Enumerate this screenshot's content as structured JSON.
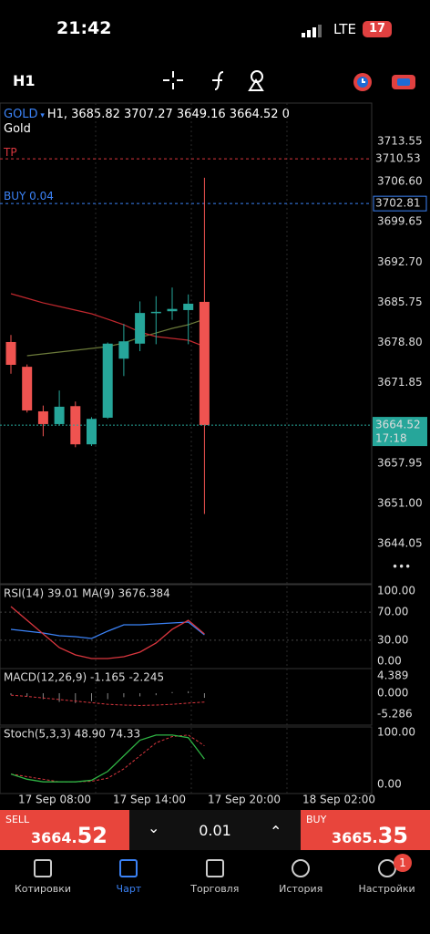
{
  "status": {
    "time": "21:42",
    "network": "LTE",
    "battery": "17"
  },
  "toolbar": {
    "timeframe": "H1"
  },
  "chart": {
    "symbol": "GOLD",
    "info": "H1, 3685.82 3707.27 3649.16 3664.52 0",
    "name": "Gold",
    "tp_label": "TP",
    "buy_label": "BUY 0.04",
    "ylim": [
      3637.11,
      3720.17
    ],
    "price_ticks": [
      3713.55,
      {
        "value": 3706.6,
        "label": "3706.60"
      },
      3699.65,
      {
        "value": 3692.7,
        "label": "3692.70"
      },
      3685.75,
      {
        "value": 3678.8,
        "label": "3678.80"
      },
      3671.85,
      3657.95,
      {
        "value": 3651,
        "label": "3651.00"
      },
      3644.05
    ],
    "tp_price": 3710.53,
    "buy_price": 3702.81,
    "current_price": 3664.52,
    "current_time": "17:18",
    "candles": [
      {
        "open": 3678.88,
        "high": 3680.1,
        "low": 3673.4,
        "close": 3674.94
      },
      {
        "open": 3674.6,
        "high": 3675.0,
        "low": 3666.7,
        "close": 3667.06
      },
      {
        "open": 3666.9,
        "high": 3667.9,
        "low": 3662.6,
        "close": 3664.7
      },
      {
        "open": 3664.7,
        "high": 3670.5,
        "low": 3664.5,
        "close": 3667.7
      },
      {
        "open": 3667.8,
        "high": 3668.6,
        "low": 3660.7,
        "close": 3661.2
      },
      {
        "open": 3661.2,
        "high": 3665.9,
        "low": 3660.9,
        "close": 3665.6
      },
      {
        "open": 3665.8,
        "high": 3678.8,
        "low": 3665.6,
        "close": 3678.6
      },
      {
        "open": 3676.0,
        "high": 3682.0,
        "low": 3673.0,
        "close": 3679.0
      },
      {
        "open": 3678.6,
        "high": 3685.9,
        "low": 3677.3,
        "close": 3683.9
      },
      {
        "open": 3684.0,
        "high": 3686.8,
        "low": 3678.5,
        "close": 3684.1
      },
      {
        "open": 3684.2,
        "high": 3688.3,
        "low": 3682.7,
        "close": 3684.6
      },
      {
        "open": 3684.4,
        "high": 3687.1,
        "low": 3678.5,
        "close": 3685.5
      },
      {
        "open": 3685.82,
        "high": 3707.27,
        "low": 3649.16,
        "close": 3664.52
      }
    ],
    "ma_red": [
      3687.23,
      3686.44,
      3685.65,
      3685.02,
      3684.39,
      3683.76,
      3682.82,
      3681.87,
      3680.61,
      3679.82,
      3679.51,
      3679.19,
      3678.09
    ],
    "ma_olive": [
      null,
      3676.51,
      3676.83,
      3677.14,
      3677.46,
      3677.77,
      3678.09,
      3678.72,
      3679.67,
      3680.45,
      3681.24,
      3681.87,
      3682.82
    ],
    "time_labels": [
      "17 Sep 08:00",
      "17 Sep 14:00",
      "17 Sep 20:00",
      "18 Sep 02:00"
    ]
  },
  "rsi": {
    "label": "RSI(14) 39.01 MA(9) 3676.384",
    "ylim": [
      -10.4,
      109.1
    ],
    "ticks": [
      {
        "value": 100,
        "label": "100.00"
      },
      {
        "value": 70,
        "label": "70.00"
      },
      {
        "value": 30,
        "label": "30.00"
      },
      {
        "value": 0,
        "label": "0.00"
      }
    ],
    "rsi": [
      77.9,
      58.4,
      39.0,
      19.5,
      9.1,
      3.9,
      3.9,
      6.5,
      13.0,
      26.0,
      45.5,
      58.4,
      39.01
    ],
    "ma": [
      45.5,
      42.9,
      40.3,
      36.4,
      35.1,
      32.5,
      42.9,
      51.9,
      51.9,
      53.2,
      54.5,
      55.8,
      37.7
    ]
  },
  "macd": {
    "label": "MACD(12,26,9) -1.165 -2.245",
    "ylim": [
      -8.08,
      6.24
    ],
    "ticks": [
      4.389,
      {
        "value": 0,
        "label": "0.000"
      },
      -5.286
    ],
    "histogram": [
      -0.5,
      -0.8,
      -1.5,
      -2.2,
      -2.5,
      -2.0,
      -1.5,
      -1.0,
      -0.8,
      -0.5,
      0.3,
      0.5,
      -1.165
    ],
    "signal": [
      -0.5,
      -0.8,
      -1.2,
      -1.6,
      -2.0,
      -2.4,
      -2.8,
      -3.0,
      -3.1,
      -3.0,
      -2.8,
      -2.5,
      -2.245
    ]
  },
  "stoch": {
    "label": "Stoch(5,3,3) 48.90 74.33",
    "ylim": [
      -17.5,
      110.5
    ],
    "ticks": [
      {
        "value": 100,
        "label": "100.00"
      },
      {
        "value": 0,
        "label": "0.00"
      }
    ],
    "k": [
      20,
      10,
      5,
      5,
      5,
      8,
      25,
      55,
      85,
      95,
      95,
      90,
      48.9
    ],
    "d": [
      20,
      15,
      10,
      5,
      5,
      6,
      12,
      30,
      55,
      80,
      92,
      95,
      74.33
    ]
  },
  "trade": {
    "sell_label": "SELL",
    "sell_main": "3664.",
    "sell_big": "52",
    "lot": "0.01",
    "buy_label": "BUY",
    "buy_main": "3665.",
    "buy_big": "35"
  },
  "tabs": [
    {
      "label": "Котировки"
    },
    {
      "label": "Чарт"
    },
    {
      "label": "Торговля"
    },
    {
      "label": "История"
    },
    {
      "label": "Настройки"
    }
  ],
  "badge": "1"
}
